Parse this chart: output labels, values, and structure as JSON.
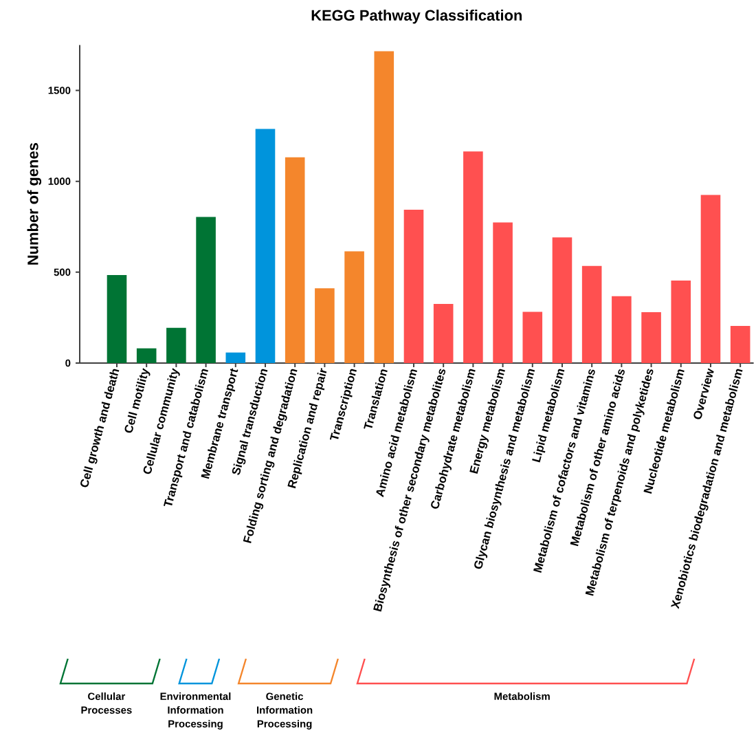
{
  "chart_data": {
    "type": "bar",
    "title": "KEGG Pathway Classification",
    "ylabel": "Number of genes",
    "categories": [
      "Cell growth and death",
      "Cell motility",
      "Cellular community",
      "Transport and catabolism",
      "Membrane transport",
      "Signal transduction",
      "Folding sorting and degradation",
      "Replication and repair",
      "Transcription",
      "Translation",
      "Amino acid metabolism",
      "Biosynthesis of other secondary metabolites",
      "Carbohydrate metabolism",
      "Energy metabolism",
      "Glycan biosynthesis and metabolism",
      "Lipid metabolism",
      "Metabolism of cofactors and vitamins",
      "Metabolism of other amino acids",
      "Metabolism of terpenoids and polyketides",
      "Nucleotide metabolism",
      "Overview",
      "Xenobiotics biodegradation and metabolism"
    ],
    "values": [
      484,
      81,
      194,
      804,
      58,
      1288,
      1132,
      411,
      615,
      1716,
      844,
      325,
      1164,
      774,
      282,
      691,
      534,
      368,
      280,
      454,
      925,
      204
    ],
    "colors": [
      "#007434",
      "#007434",
      "#007434",
      "#007434",
      "#0094DC",
      "#0094DC",
      "#F4862C",
      "#F4862C",
      "#F4862C",
      "#F4862C",
      "#FF5050",
      "#FF5050",
      "#FF5050",
      "#FF5050",
      "#FF5050",
      "#FF5050",
      "#FF5050",
      "#FF5050",
      "#FF5050",
      "#FF5050",
      "#FF5050",
      "#FF5050"
    ],
    "ylim": [
      0,
      1750
    ],
    "yticks": [
      0,
      500,
      1000,
      1500
    ],
    "annotations": [
      "Cellular Processes",
      "Environmental Information Processing",
      "Genetic Information Processing",
      "Metabolism"
    ]
  }
}
